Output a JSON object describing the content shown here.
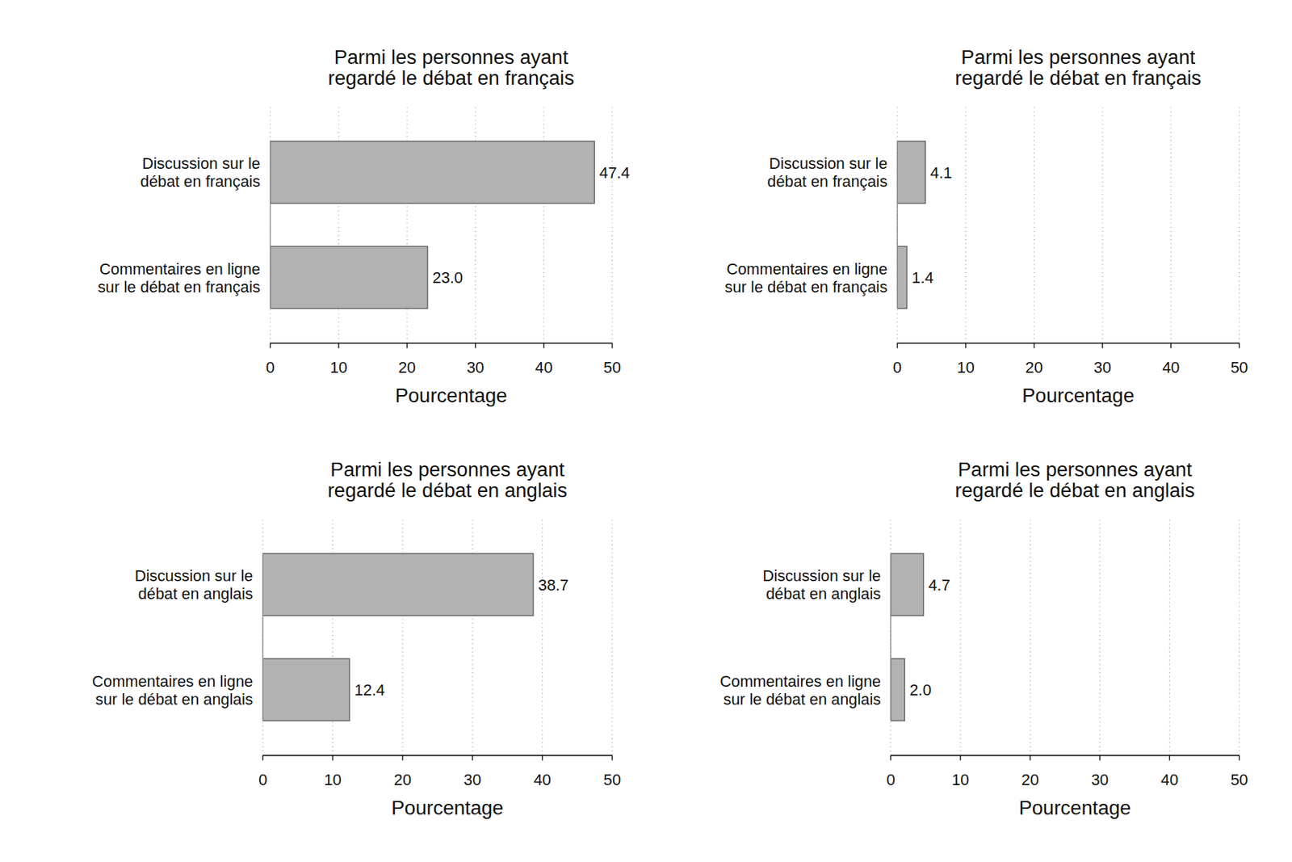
{
  "chart_data": [
    {
      "type": "bar",
      "orientation": "horizontal",
      "title": "Parmi les personnes ayant regardé le débat en français",
      "categories": [
        "Discussion sur le débat en français",
        "Commentaires en ligne sur le débat en français"
      ],
      "values": [
        47.4,
        23.0
      ],
      "value_labels": [
        "47.4",
        "23.0"
      ],
      "data_labels": true,
      "color": "#b2b2b2",
      "xlabel": "Pourcentage",
      "xlim": [
        0,
        50
      ],
      "xticks": [
        0,
        10,
        20,
        30,
        40,
        50
      ],
      "grid": true
    },
    {
      "type": "bar",
      "orientation": "horizontal",
      "title": "Parmi les personnes ayant regardé le débat en français",
      "categories": [
        "Discussion sur le débat en français",
        "Commentaires en ligne sur le débat en français"
      ],
      "values": [
        4.1,
        1.4
      ],
      "value_labels": [
        "4.1",
        "1.4"
      ],
      "data_labels": true,
      "color": "#b2b2b2",
      "xlabel": "Pourcentage",
      "xlim": [
        0,
        50
      ],
      "xticks": [
        0,
        10,
        20,
        30,
        40,
        50
      ],
      "grid": true
    },
    {
      "type": "bar",
      "orientation": "horizontal",
      "title": "Parmi les personnes ayant regardé le débat en anglais",
      "categories": [
        "Discussion sur le débat en anglais",
        "Commentaires en ligne sur le débat en anglais"
      ],
      "values": [
        38.7,
        12.4
      ],
      "value_labels": [
        "38.7",
        "12.4"
      ],
      "data_labels": true,
      "color": "#b2b2b2",
      "xlabel": "Pourcentage",
      "xlim": [
        0,
        50
      ],
      "xticks": [
        0,
        10,
        20,
        30,
        40,
        50
      ],
      "grid": true
    },
    {
      "type": "bar",
      "orientation": "horizontal",
      "title": "Parmi les personnes ayant regardé le débat en anglais",
      "categories": [
        "Discussion sur le débat en anglais",
        "Commentaires en ligne sur le débat en anglais"
      ],
      "values": [
        4.7,
        2.0
      ],
      "value_labels": [
        "4.7",
        "2.0"
      ],
      "data_labels": true,
      "color": "#b2b2b2",
      "xlabel": "Pourcentage",
      "xlim": [
        0,
        50
      ],
      "xticks": [
        0,
        10,
        20,
        30,
        40,
        50
      ],
      "grid": true
    }
  ]
}
